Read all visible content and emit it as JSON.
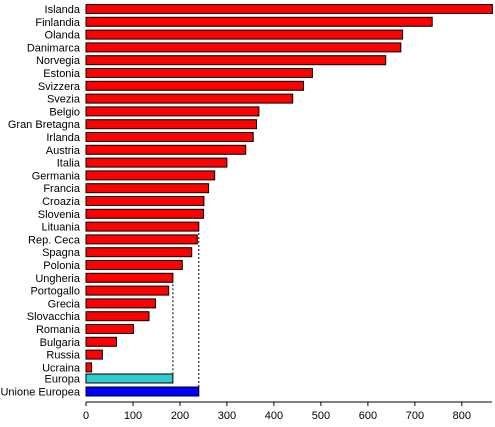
{
  "chart_data": {
    "type": "bar",
    "orientation": "horizontal",
    "title": "",
    "xlabel": "",
    "ylabel": "",
    "xlim": [
      0,
      860
    ],
    "x_ticks": [
      0,
      100,
      200,
      300,
      400,
      500,
      600,
      700,
      800
    ],
    "x_tick_labels": [
      "0",
      "100",
      "200",
      "300",
      "400",
      "500",
      "600",
      "700",
      "800"
    ],
    "grid": false,
    "legend": "none",
    "categories": [
      "Islanda",
      "Finlandia",
      "Olanda",
      "Danimarca",
      "Norvegia",
      "Estonia",
      "Svizzera",
      "Svezia",
      "Belgio",
      "Gran Bretagna",
      "Irlanda",
      "Austria",
      "Italia",
      "Germania",
      "Francia",
      "Croazia",
      "Slovenia",
      "Lituania",
      "Rep. Ceca",
      "Spagna",
      "Polonia",
      "Ungheria",
      "Portogallo",
      "Grecia",
      "Slovacchia",
      "Romania",
      "Bulgaria",
      "Russia",
      "Ucraina"
    ],
    "values": [
      865,
      737,
      674,
      670,
      638,
      482,
      463,
      440,
      368,
      363,
      356,
      340,
      300,
      274,
      261,
      251,
      250,
      240,
      237,
      225,
      205,
      185,
      176,
      148,
      134,
      101,
      65,
      35,
      12
    ],
    "bar_color": "#ff0000",
    "summary_categories": [
      "Europa",
      "Unione Europea"
    ],
    "summary_values": [
      185,
      240
    ],
    "summary_colors": [
      "#33cccc",
      "#0000ff"
    ],
    "reference_lines": [
      {
        "value": 185,
        "style": "dashed"
      },
      {
        "value": 240,
        "style": "dashed"
      }
    ]
  }
}
